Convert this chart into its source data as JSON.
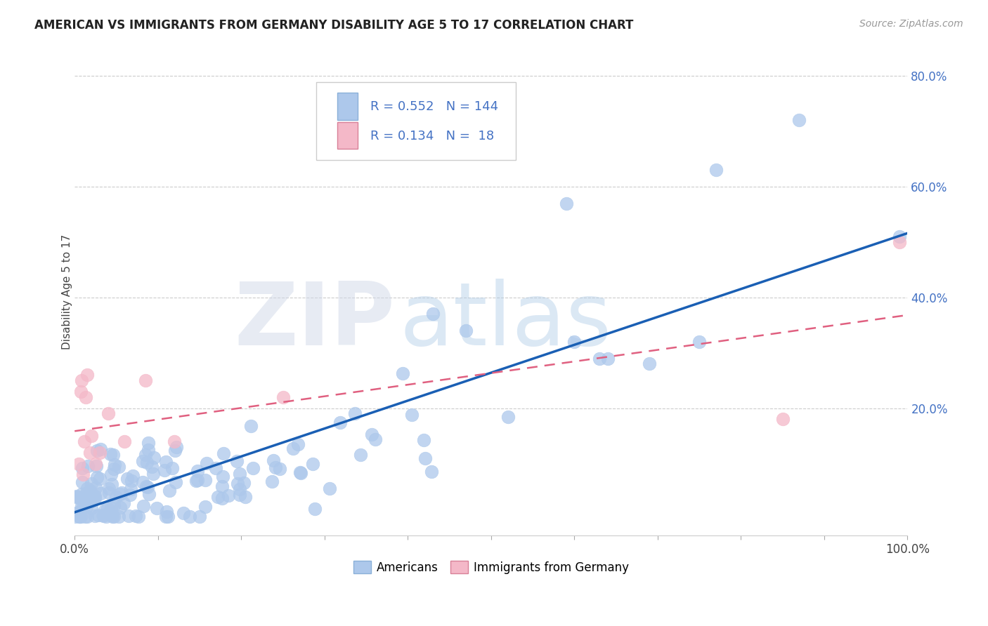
{
  "title": "AMERICAN VS IMMIGRANTS FROM GERMANY DISABILITY AGE 5 TO 17 CORRELATION CHART",
  "source": "Source: ZipAtlas.com",
  "ylabel": "Disability Age 5 to 17",
  "x_min": 0.0,
  "x_max": 1.0,
  "y_min": -0.03,
  "y_max": 0.85,
  "R_american": 0.552,
  "N_american": 144,
  "R_germany": 0.134,
  "N_germany": 18,
  "american_color": "#adc8eb",
  "germany_color": "#f4b8c8",
  "trend_american_color": "#1a5fb4",
  "trend_germany_color": "#e06080",
  "watermark_zip": "ZIP",
  "watermark_atlas": "atlas",
  "legend_R_color": "#4472c4",
  "ytick_color": "#4472c4",
  "grid_color": "#cccccc",
  "title_color": "#222222",
  "source_color": "#999999"
}
